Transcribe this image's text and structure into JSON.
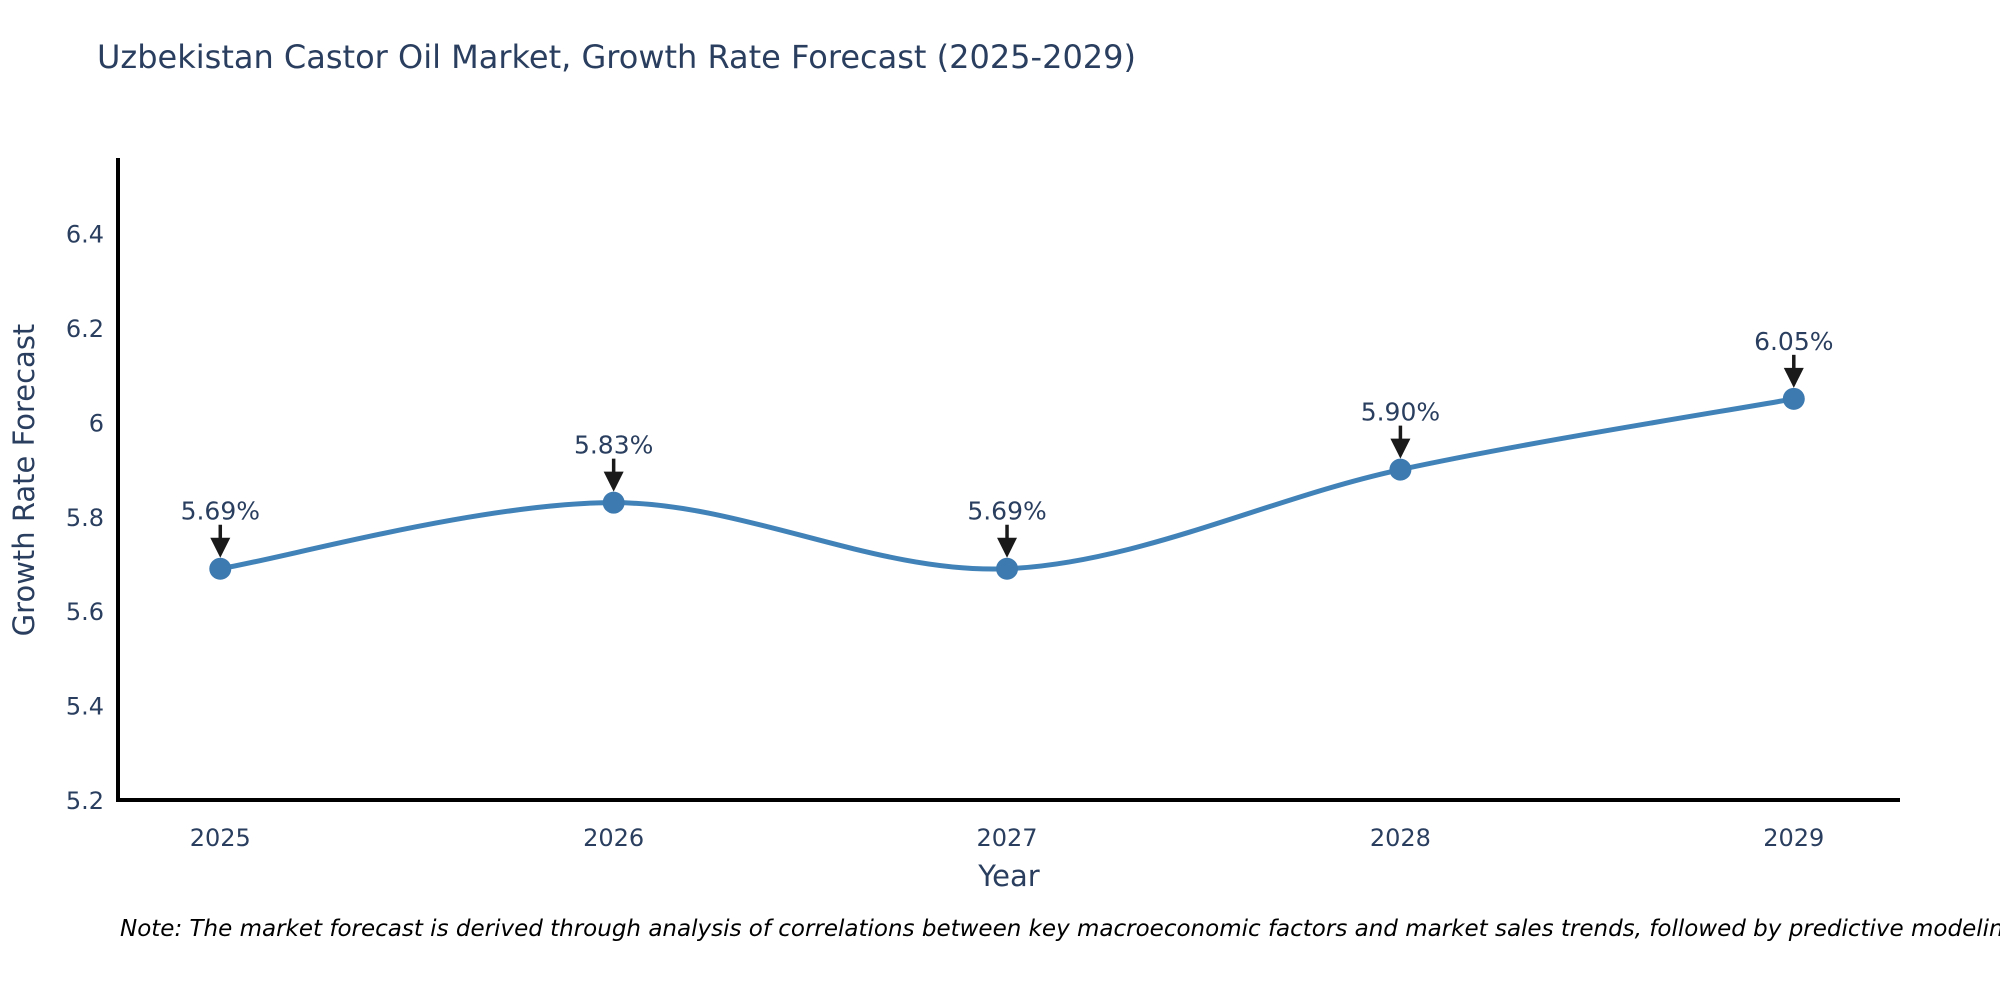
{
  "page": {
    "note": "Note: The market forecast is derived through analysis of correlations between key macroeconomic factors and market sales trends, followed by predictive modeling to project future sales"
  },
  "chart_data": {
    "type": "line",
    "title": "Uzbekistan Castor Oil Market, Growth Rate Forecast (2025-2029)",
    "xlabel": "Year",
    "ylabel": "Growth Rate Forecast",
    "x": [
      2025,
      2026,
      2027,
      2028,
      2029
    ],
    "series": [
      {
        "name": "Growth Rate Forecast",
        "values": [
          5.69,
          5.83,
          5.69,
          5.9,
          6.05
        ]
      }
    ],
    "point_labels": [
      "5.69%",
      "5.83%",
      "5.69%",
      "5.90%",
      "6.05%"
    ],
    "xtick_labels": [
      "2025",
      "2026",
      "2027",
      "2028",
      "2029"
    ],
    "ytick_values": [
      5.2,
      5.4,
      5.6,
      5.8,
      6.0,
      6.2,
      6.4
    ],
    "ytick_labels": [
      "5.2",
      "5.4",
      "5.6",
      "5.8",
      "6",
      "6.2",
      "6.4"
    ],
    "xlim": [
      2024.74,
      2029.27
    ],
    "ylim": [
      5.2,
      6.556
    ],
    "line_shape": "spline",
    "grid": false,
    "legend_visible": false,
    "colors": {
      "line": "#4183b8",
      "marker": "#3d7ab0",
      "axis_line": "#000000",
      "tick_label": "#2a3f5f",
      "title": "#2a3f5f",
      "axis_title": "#2a3f5f",
      "annotation_text": "#2a3f5f",
      "annotation_arrow": "#1a1a1a"
    }
  }
}
